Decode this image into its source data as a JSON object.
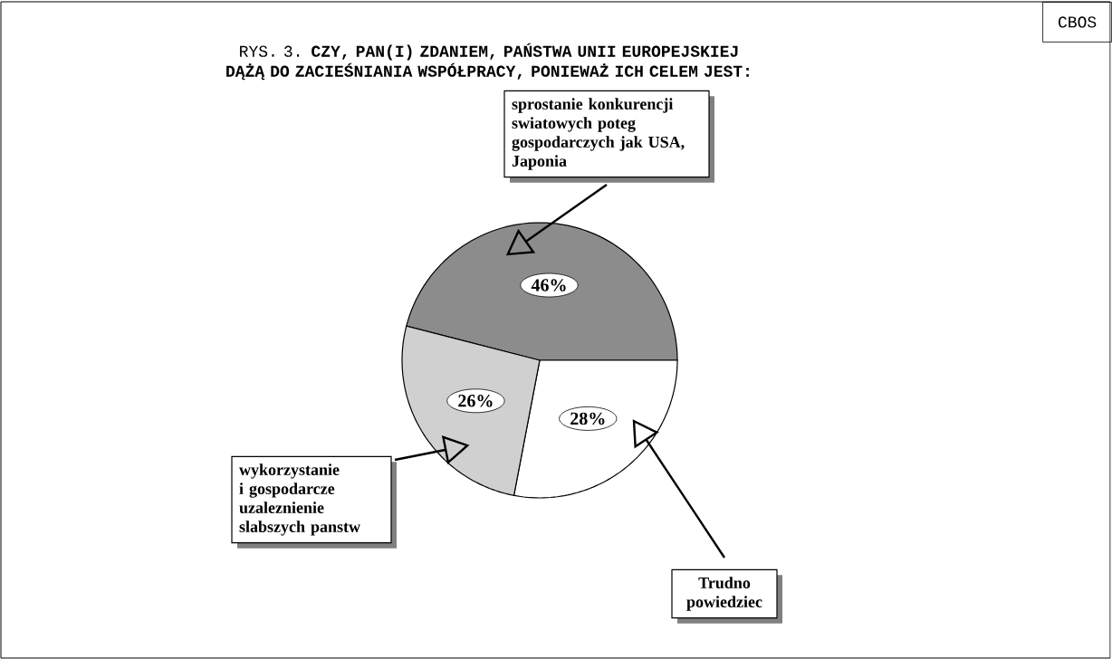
{
  "chart_data": {
    "type": "pie",
    "title": "RYS. 3. **CZY, PAN(I) ZDANIEM, PAŃSTWA UNII EUROPEJSKIEJ DĄŻĄ DO ZACIEŚNIANIA WSPÓŁPRACY, PONIEWAŻ ICH CELEM JEST:**",
    "categories": [
      "sprostanie konkurencji swiatowych poteg gospodarczych jak USA, Japonia",
      "Trudno powiedziec",
      "wykorzystanie i gospodarcze uzaleznienie slabszych panstw"
    ],
    "values": [
      46,
      28,
      26
    ],
    "value_labels": [
      "46%",
      "28%",
      "26%"
    ],
    "colors": [
      "#8c8c8c",
      "#ffffff",
      "#d0d0d0"
    ],
    "annotations": [
      "CBOS"
    ]
  }
}
